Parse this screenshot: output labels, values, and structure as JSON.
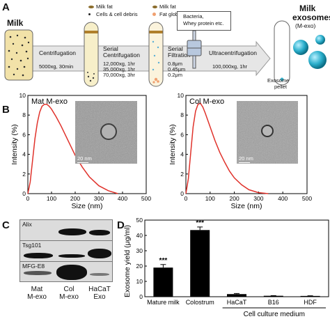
{
  "panels": {
    "a": "A",
    "b": "B",
    "c": "C",
    "d": "D"
  },
  "panel_a": {
    "milk_label": "Milk",
    "step1": {
      "name": "Centrifugation",
      "condition": "5000xg, 30min"
    },
    "legend_tube2": [
      "Milk fat",
      "Cells & cell debris"
    ],
    "step2": {
      "name_line1": "Serial",
      "name_line2": "Centrifugation",
      "conditions": [
        "12,000xg, 1hr",
        "35,000xg, 1hr",
        "70,000xg, 3hr"
      ]
    },
    "legend_tube3": [
      "Milk fat",
      "Fat globules"
    ],
    "step3": {
      "name_line1": "Serial",
      "name_line2": "Filtration",
      "conditions": [
        "0.8μm",
        "0.45μm",
        "0.2μm"
      ]
    },
    "bacteria_box": [
      "Bacteria,",
      "Whey protein etc."
    ],
    "step4": {
      "name": "Ultracentrifugation",
      "condition": "100,000xg, 1hr"
    },
    "pellet_label": [
      "Exosome",
      "pellet"
    ],
    "product": [
      "Milk",
      "exosomes",
      "(M-exo)"
    ]
  },
  "panel_b": {
    "scale_bar": "20 nm",
    "charts": [
      {
        "title": "Mat M-exo",
        "ylabel": "Intensity (%)",
        "xlabel": "Size (nm)"
      },
      {
        "title": "Col M-exo",
        "ylabel": "Intensity (%)",
        "xlabel": "Size (nm)"
      }
    ]
  },
  "panel_c": {
    "blots": [
      "Alix",
      "Tsg101",
      "MFG-E8"
    ],
    "lanes": [
      {
        "line1": "Mat",
        "line2": "M-exo"
      },
      {
        "line1": "Col",
        "line2": "M-exo"
      },
      {
        "line1": "HaCaT",
        "line2": "Exo"
      }
    ]
  },
  "panel_d": {
    "ylabel": "Exosome yield (μg/ml)",
    "group_label": "Cell culture medium",
    "significance": [
      "***",
      "***"
    ]
  },
  "chart_data": [
    {
      "type": "line",
      "panel": "B-left",
      "title": "Mat M-exo",
      "xlabel": "Size (nm)",
      "ylabel": "Intensity (%)",
      "xlim": [
        0,
        500
      ],
      "ylim": [
        0,
        10
      ],
      "xticks": [
        0,
        100,
        200,
        300,
        400,
        500
      ],
      "yticks": [
        0,
        2,
        4,
        6,
        8,
        10
      ],
      "x": [
        0,
        10,
        20,
        30,
        40,
        50,
        60,
        70,
        80,
        90,
        100,
        120,
        140,
        160,
        180,
        200,
        230,
        260,
        300,
        340,
        380
      ],
      "y": [
        0,
        1.2,
        3.4,
        5.6,
        7.2,
        8.3,
        8.9,
        9.1,
        9.1,
        8.9,
        8.6,
        7.8,
        6.9,
        5.9,
        4.9,
        3.9,
        2.7,
        1.7,
        0.8,
        0.3,
        0.0
      ]
    },
    {
      "type": "line",
      "panel": "B-right",
      "title": "Col M-exo",
      "xlabel": "Size (nm)",
      "ylabel": "Intensity (%)",
      "xlim": [
        0,
        500
      ],
      "ylim": [
        0,
        10
      ],
      "xticks": [
        0,
        100,
        200,
        300,
        400,
        500
      ],
      "yticks": [
        0,
        2,
        4,
        6,
        8,
        10
      ],
      "x": [
        0,
        10,
        20,
        30,
        40,
        50,
        60,
        70,
        80,
        100,
        120,
        140,
        160,
        180,
        200,
        230,
        260,
        300,
        340
      ],
      "y": [
        0,
        1.5,
        4.2,
        6.8,
        8.4,
        9.1,
        9.2,
        8.8,
        8.2,
        6.8,
        5.4,
        4.2,
        3.2,
        2.3,
        1.6,
        0.9,
        0.4,
        0.1,
        0.0
      ]
    },
    {
      "type": "bar",
      "panel": "D",
      "ylabel": "Exosome yield (μg/ml)",
      "categories": [
        "Mature milk",
        "Colostrum",
        "HaCaT",
        "B16",
        "HDF"
      ],
      "values": [
        19,
        43.5,
        1.7,
        0.6,
        0.5
      ],
      "errors": [
        2,
        2,
        0.4,
        0.1,
        0.1
      ],
      "ylim": [
        0,
        50
      ],
      "yticks": [
        0,
        10,
        20,
        30,
        40,
        50
      ]
    }
  ]
}
